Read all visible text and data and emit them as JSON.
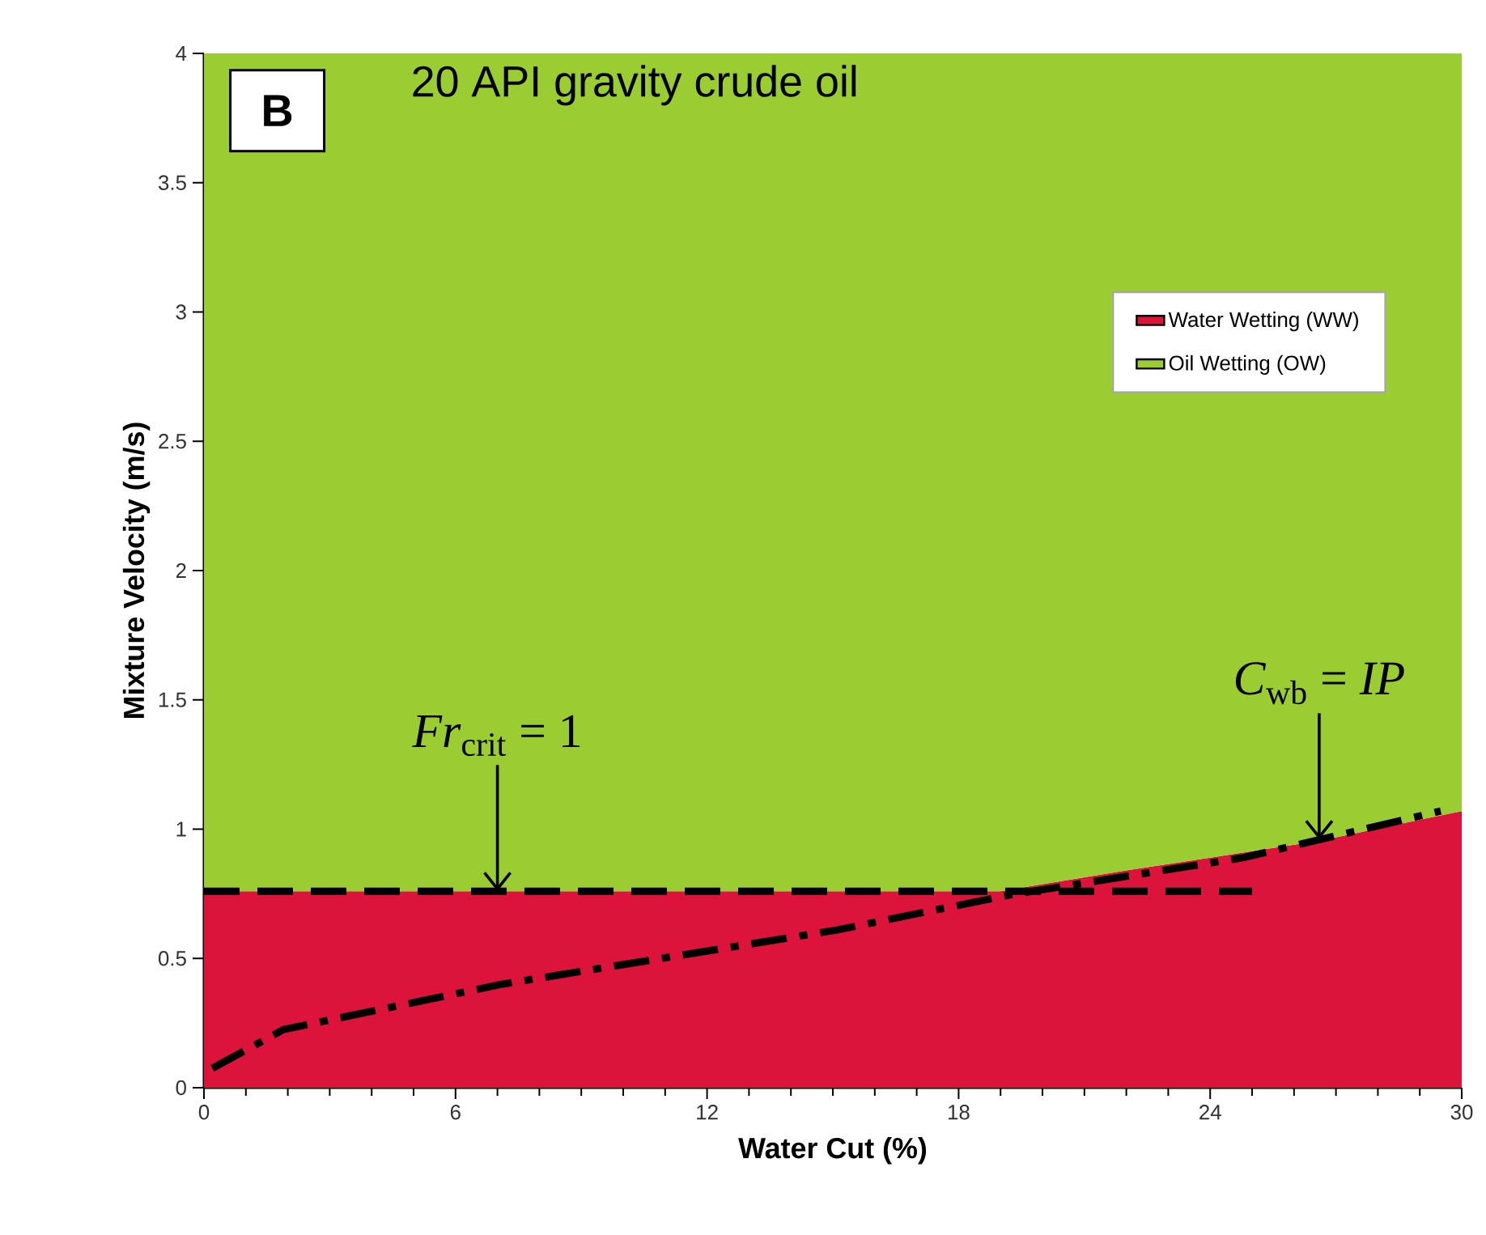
{
  "chart_data": {
    "type": "area",
    "title": "20 API gravity crude oil",
    "xlabel": "Water Cut   (%)",
    "ylabel": "Mixture Velocity  (m/s)",
    "stacked": true,
    "series": [
      {
        "name": "Water Wetting (WW)",
        "color": "#dc143c",
        "x": [
          0,
          19,
          22,
          24,
          26.6,
          30
        ],
        "values": [
          0.76,
          0.76,
          0.84,
          0.89,
          0.955,
          1.07
        ]
      },
      {
        "name": "Oil Wetting (OW)",
        "color": "#9acd32",
        "x": [
          0,
          19,
          22,
          24,
          26.6,
          30
        ],
        "values": [
          3.24,
          3.24,
          3.16,
          3.11,
          3.045,
          2.93
        ]
      },
      {
        "type": "line",
        "color": "#000000",
        "line_style": "dashed",
        "x": [
          0,
          25
        ],
        "values": [
          0.76,
          0.76
        ]
      },
      {
        "type": "line",
        "color": "#000000",
        "line_style": "dashdot",
        "x": [
          0.2,
          1.9,
          7.1,
          15.1,
          19.2,
          24.8,
          29.5
        ],
        "values": [
          0.075,
          0.225,
          0.4,
          0.61,
          0.745,
          0.89,
          1.07
        ]
      }
    ],
    "xlim": [
      0,
      30
    ],
    "xticks": [
      0,
      6,
      12,
      18,
      24,
      30
    ],
    "ylim": [
      0,
      4
    ],
    "yticks": [
      0,
      0.5,
      1,
      1.5,
      2,
      2.5,
      3,
      3.5,
      4
    ],
    "legend": "top right",
    "annotations": [
      "B",
      {
        "text": "*Fr*$_{crit}$ = 1",
        "x": 7,
        "y": 0.76
      },
      {
        "text": "*C*$_{wb}$ = *IP*",
        "x": 26.6,
        "y": 0.96
      }
    ]
  }
}
